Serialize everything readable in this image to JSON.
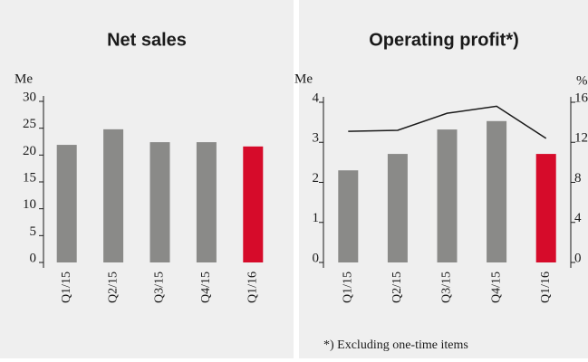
{
  "chart_data": [
    {
      "type": "bar",
      "title": "Net sales",
      "y_label": "Me",
      "categories": [
        "Q1/15",
        "Q2/15",
        "Q3/15",
        "Q4/15",
        "Q1/16"
      ],
      "values": [
        21.9,
        24.8,
        22.4,
        22.4,
        21.6
      ],
      "colors": [
        "#8a8a88",
        "#8a8a88",
        "#8a8a88",
        "#8a8a88",
        "#d60b2a"
      ],
      "ylim": [
        0,
        30
      ],
      "yticks": [
        0,
        5,
        10,
        15,
        20,
        25,
        30
      ]
    },
    {
      "type": "bar",
      "title": "Operating profit*)",
      "y_label": "Me",
      "y2_label": "%",
      "categories": [
        "Q1/15",
        "Q2/15",
        "Q3/15",
        "Q4/15",
        "Q1/16"
      ],
      "values": [
        2.3,
        2.71,
        3.32,
        3.53,
        2.71
      ],
      "colors": [
        "#8a8a88",
        "#8a8a88",
        "#8a8a88",
        "#8a8a88",
        "#d60b2a"
      ],
      "line": {
        "axis": "y2",
        "color": "#1a1a1a",
        "values": [
          13.1,
          13.2,
          14.9,
          15.6,
          12.4
        ]
      },
      "ylim": [
        0,
        4
      ],
      "yticks": [
        0,
        1,
        2,
        3,
        4
      ],
      "y2lim": [
        0,
        16
      ],
      "y2ticks": [
        0,
        4,
        8,
        12,
        16
      ],
      "annotation": "*) Excluding one-time items"
    }
  ]
}
